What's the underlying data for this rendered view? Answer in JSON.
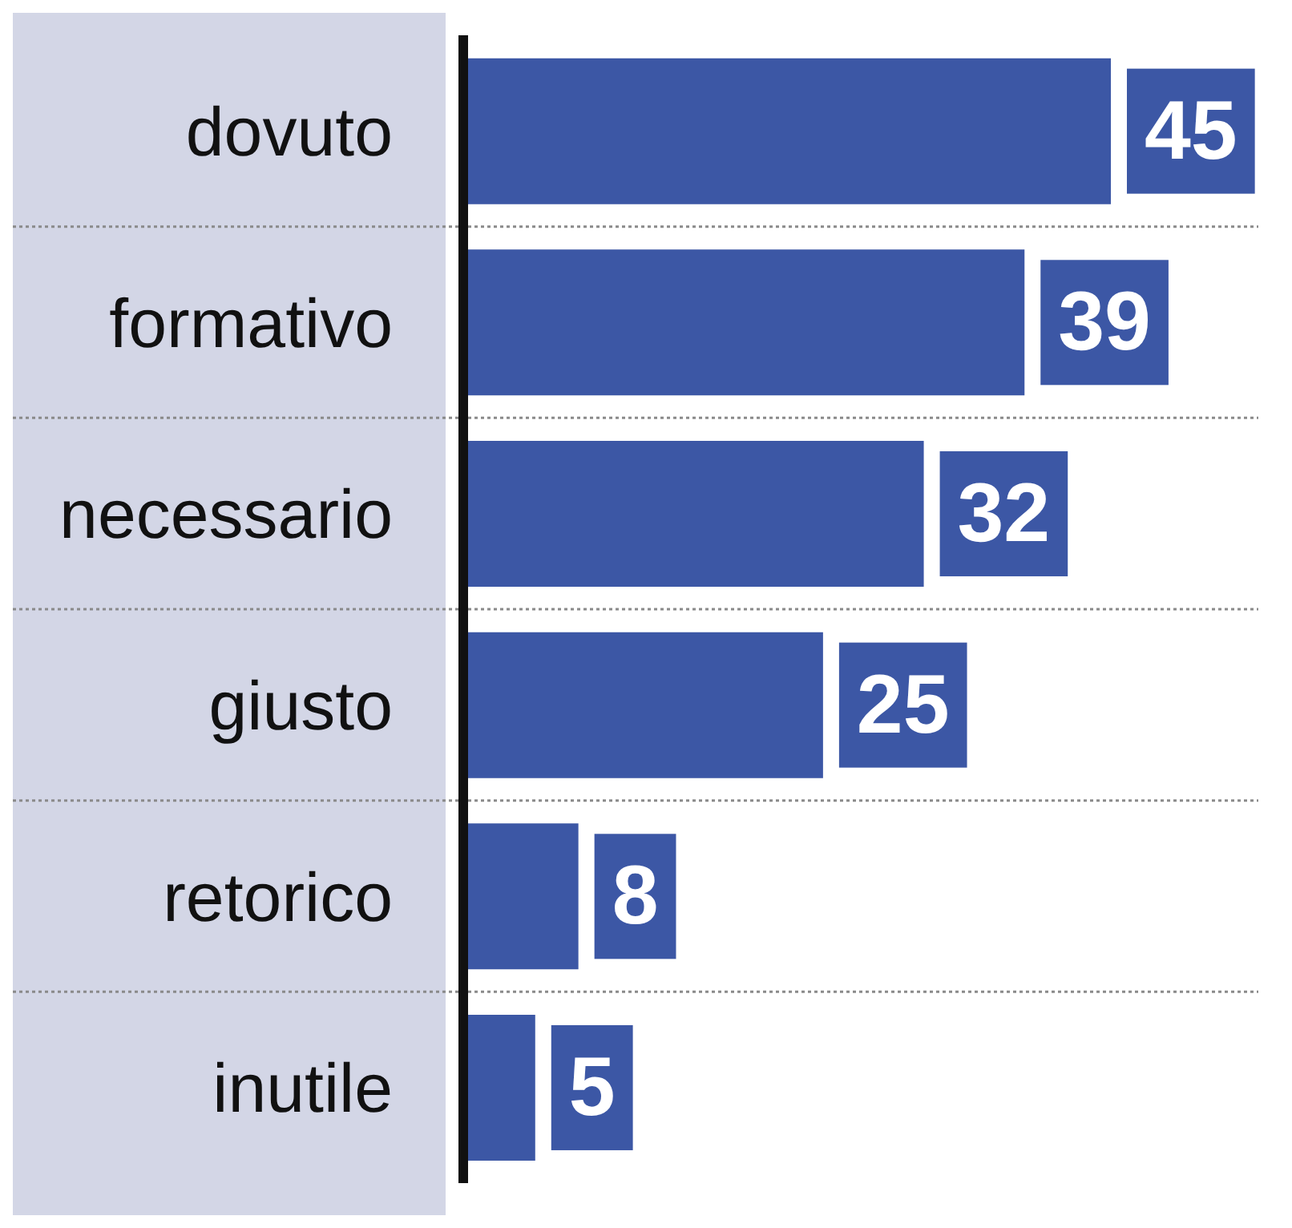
{
  "chart_data": {
    "type": "bar",
    "orientation": "horizontal",
    "categories": [
      "dovuto",
      "formativo",
      "necessario",
      "giusto",
      "retorico",
      "inutile"
    ],
    "values": [
      45,
      39,
      32,
      25,
      8,
      5
    ],
    "color": "#3c57a5",
    "data_labels": true,
    "grid": "y",
    "tick_labels": "y"
  }
}
